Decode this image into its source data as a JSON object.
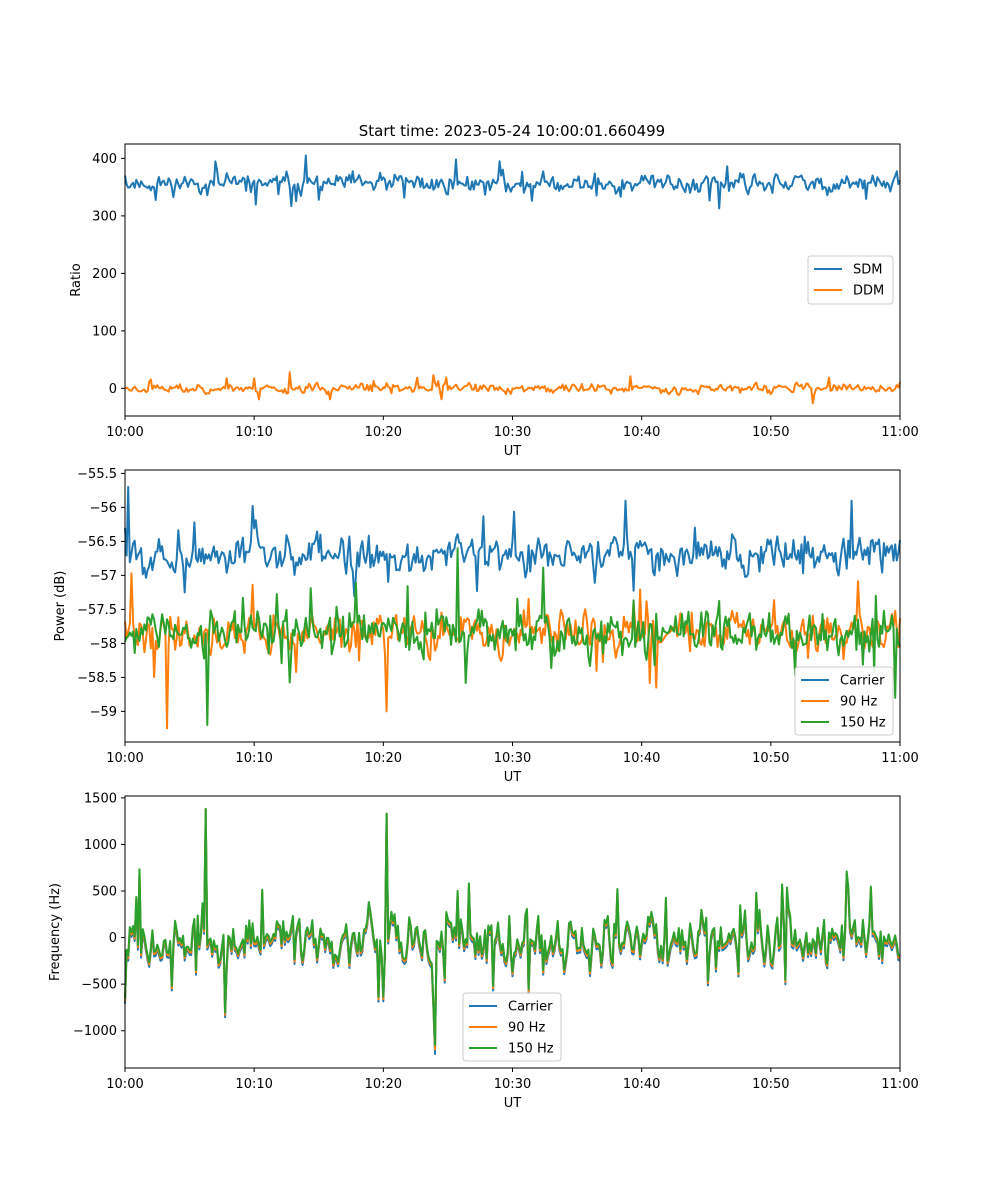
{
  "title": "Start time: 2023-05-24 10:00:01.660499",
  "chart_data": [
    {
      "type": "line",
      "xlabel": "UT",
      "ylabel": "Ratio",
      "xlim": [
        "10:00",
        "11:00"
      ],
      "xticks": [
        "10:00",
        "10:10",
        "10:20",
        "10:30",
        "10:40",
        "10:50",
        "11:00"
      ],
      "ylim": [
        -48,
        425
      ],
      "yticks": [
        0,
        100,
        200,
        300,
        400
      ],
      "legend": "center-right",
      "series": [
        {
          "name": "SDM",
          "color": "#1f77b4",
          "mean": 356,
          "amplitude": 16,
          "spike_prob": 0.03,
          "spike_size": 30,
          "seed": 11,
          "x": [
            "10:00",
            "10:14",
            "10:25.6",
            "10:46"
          ],
          "y": [
            370,
            405,
            398,
            313
          ]
        },
        {
          "name": "DDM",
          "color": "#ff7f0e",
          "mean": 0,
          "amplitude": 8,
          "spike_prob": 0.03,
          "spike_size": 18,
          "seed": 23,
          "x": [
            "10:00",
            "10:12.8",
            "10:53.2"
          ],
          "y": [
            0,
            28,
            -26
          ]
        }
      ]
    },
    {
      "type": "line",
      "xlabel": "UT",
      "ylabel": "Power (dB)",
      "xlim": [
        "10:00",
        "11:00"
      ],
      "xticks": [
        "10:00",
        "10:10",
        "10:20",
        "10:30",
        "10:40",
        "10:50",
        "11:00"
      ],
      "ylim": [
        -59.45,
        -55.45
      ],
      "yticks": [
        -55.5,
        -56.0,
        -56.5,
        -57.0,
        -57.5,
        -58.0,
        -58.5,
        -59.0
      ],
      "legend": "lower-right",
      "series": [
        {
          "name": "Carrier",
          "color": "#1f77b4",
          "mean": -56.7,
          "amplitude": 0.28,
          "spike_prob": 0.04,
          "spike_size": 0.45,
          "seed": 5,
          "x": [
            "10:00",
            "10:00.3",
            "10:38.8",
            "10:56.3"
          ],
          "y": [
            -56.3,
            -55.7,
            -55.9,
            -55.9
          ]
        },
        {
          "name": "90 Hz",
          "color": "#ff7f0e",
          "mean": -57.85,
          "amplitude": 0.28,
          "spike_prob": 0.05,
          "spike_size": 0.55,
          "seed": 41,
          "x": [
            "10:03.2",
            "10:20.3",
            "10:41.1"
          ],
          "y": [
            -59.25,
            -59.0,
            -58.65
          ]
        },
        {
          "name": "150 Hz",
          "color": "#2ca02c",
          "mean": -57.85,
          "amplitude": 0.3,
          "spike_prob": 0.05,
          "spike_size": 0.55,
          "seed": 77,
          "x": [
            "10:06.4",
            "10:25.7",
            "10:59.6"
          ],
          "y": [
            -59.2,
            -56.6,
            -58.8
          ]
        }
      ]
    },
    {
      "type": "line",
      "xlabel": "UT",
      "ylabel": "Frequency (Hz)",
      "xlim": [
        "10:00",
        "11:00"
      ],
      "xticks": [
        "10:00",
        "10:10",
        "10:20",
        "10:30",
        "10:40",
        "10:50",
        "11:00"
      ],
      "ylim": [
        -1400,
        1520
      ],
      "yticks": [
        1500,
        1000,
        500,
        0,
        -500,
        -1000
      ],
      "legend": "lower-center",
      "series": [
        {
          "name": "Carrier",
          "color": "#1f77b4",
          "mean": -10,
          "amplitude": 270,
          "spike_prob": 0.06,
          "spike_size": 500,
          "seed": 91,
          "offset": -50,
          "x": [
            "10:06.2",
            "10:20.2",
            "10:24"
          ],
          "y": [
            1380,
            1330,
            -1250
          ]
        },
        {
          "name": "90 Hz",
          "color": "#ff7f0e",
          "mean": -10,
          "amplitude": 270,
          "spike_prob": 0.06,
          "spike_size": 500,
          "seed": 91,
          "offset": -25,
          "x": [
            "10:06.2",
            "10:20.2",
            "10:24"
          ],
          "y": [
            1380,
            1330,
            -1200
          ]
        },
        {
          "name": "150 Hz",
          "color": "#2ca02c",
          "mean": -10,
          "amplitude": 270,
          "spike_prob": 0.06,
          "spike_size": 500,
          "seed": 91,
          "offset": 0,
          "x": [
            "10:06.2",
            "10:20.2",
            "10:24"
          ],
          "y": [
            1380,
            1330,
            -1150
          ]
        }
      ]
    }
  ]
}
